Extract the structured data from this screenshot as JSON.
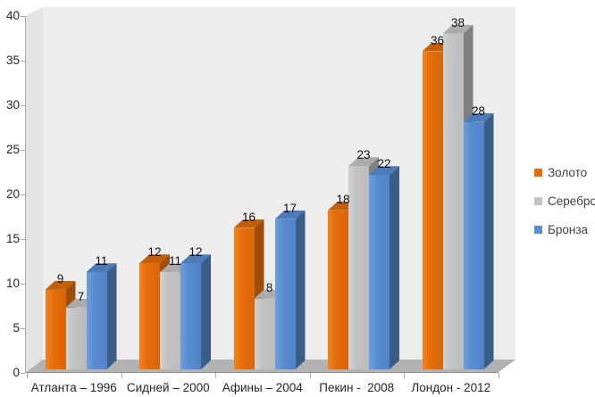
{
  "chart_data": {
    "type": "bar",
    "variant": "3d-clustered-column",
    "title": "",
    "categories": [
      "Атланта – 1996",
      "Сидней – 2000",
      "Афины – 2004",
      "Пекин -  2008",
      "Лондон - 2012"
    ],
    "series": [
      {
        "key": "gold",
        "name": "Золото",
        "values": [
          9,
          12,
          16,
          18,
          36
        ],
        "color": "#E56D0B",
        "color_light": "#F0801E",
        "color_dark": "#DB6608",
        "color_top": "#C45F08",
        "color_side": "#9E4E06"
      },
      {
        "key": "silver",
        "name": "Серебро",
        "values": [
          7,
          11,
          8,
          23,
          38
        ],
        "color": "#C3C3C3",
        "color_light": "#CFCFCF",
        "color_dark": "#BCBCBC",
        "color_top": "#ABABAB",
        "color_side": "#808080"
      },
      {
        "key": "bronze",
        "name": "Бронза",
        "values": [
          11,
          12,
          17,
          22,
          28
        ],
        "color": "#5A8DD0",
        "color_light": "#6B9BD8",
        "color_dark": "#4F83C8",
        "color_top": "#4C7CB8",
        "color_side": "#3A5C88"
      }
    ],
    "y_axis": {
      "min": 0,
      "max": 40,
      "step": 5,
      "ticks": [
        "0",
        "5",
        "10",
        "15",
        "20",
        "25",
        "30",
        "35",
        "40"
      ]
    },
    "x_axis": {
      "labels": [
        "Атланта – 1996",
        "Сидней – 2000",
        "Афины – 2004",
        "Пекин -  2008",
        "Лондон - 2012"
      ]
    },
    "legend_position": "right",
    "grid": false,
    "data_labels": true
  },
  "colors": {
    "background": "#FFFFFF",
    "wall_back": "#EDEDED",
    "wall_side": "#E3E3E3",
    "floor": "#B2B2B2",
    "axis": "#A6A6A6",
    "text": "#262626"
  }
}
